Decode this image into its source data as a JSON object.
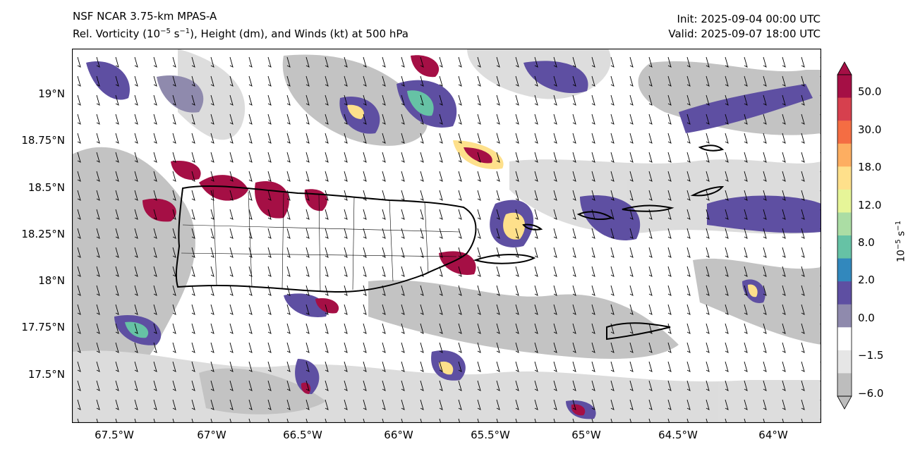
{
  "header": {
    "model": "NSF NCAR 3.75-km MPAS-A",
    "field_prefix": "Rel. Vorticity (10",
    "field_exp": "−5",
    "field_mid": " s",
    "field_exp2": "−1",
    "field_suffix": "), Height (dm), and Winds (kt) at 500 hPa",
    "init": "Init: 2025-09-04 00:00 UTC",
    "valid": "Valid: 2025-09-07 18:00 UTC"
  },
  "axes": {
    "lat_labels": [
      "19°N",
      "18.75°N",
      "18.5°N",
      "18.25°N",
      "18°N",
      "17.75°N",
      "17.5°N"
    ],
    "lon_labels": [
      "67.5°W",
      "67°W",
      "66.5°W",
      "66°W",
      "65.5°W",
      "65°W",
      "64.5°W",
      "64°W"
    ],
    "lat_range": [
      17.25,
      19.25
    ],
    "lon_range": [
      -67.75,
      -63.75
    ]
  },
  "colorbar": {
    "ticks": [
      "50.0",
      "30.0",
      "18.0",
      "12.0",
      "8.0",
      "2.0",
      "0.0",
      "−1.5",
      "−6.0"
    ],
    "unit_base": "10",
    "unit_exp": "−5",
    "unit_mid": " s",
    "unit_exp2": "−1",
    "colors": [
      "#a50f45",
      "#d6404e",
      "#f46d43",
      "#fdae61",
      "#fee08b",
      "#e6f598",
      "#abdda4",
      "#66c2a5",
      "#3288bd",
      "#5e4fa2",
      "#8f8aad",
      "#ffffff",
      "#e6e6e6",
      "#bdbdbd"
    ]
  }
}
